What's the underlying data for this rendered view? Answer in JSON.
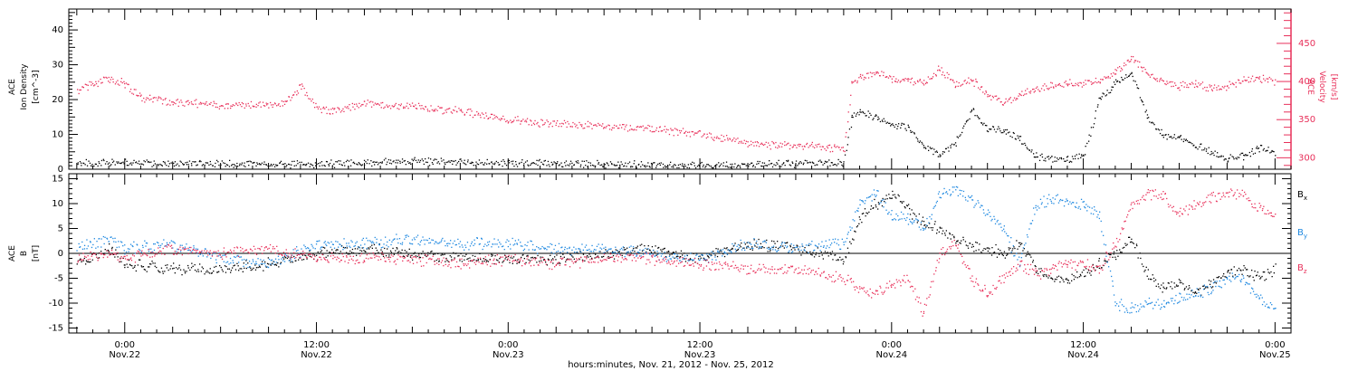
{
  "chart_data": [
    {
      "type": "scatter",
      "panel": "top",
      "ylabel_lines": [
        "ACE",
        "Ion Density",
        "[cm^-3]"
      ],
      "ylim": [
        0,
        46
      ],
      "yticks": [
        "0",
        "10",
        "20",
        "30",
        "40"
      ],
      "y2label_lines": [
        "ACE",
        "Velocity",
        "[km/s]"
      ],
      "y2lim": [
        285,
        495
      ],
      "y2ticks": [
        "300",
        "350",
        "400",
        "450"
      ],
      "series": [
        {
          "name": "Ion Density",
          "color": "#000000",
          "axis": "left",
          "x": [
            -3,
            0,
            3,
            6,
            9,
            12,
            15,
            18,
            21,
            24,
            27,
            30,
            33,
            36,
            39,
            42,
            45,
            45.5,
            46,
            47,
            48,
            49,
            50,
            51,
            52,
            53,
            54,
            55,
            56,
            57,
            58,
            59,
            60,
            61,
            62,
            63,
            64,
            65,
            66,
            67,
            68,
            69,
            70,
            71,
            72
          ],
          "y": [
            2,
            2,
            1.8,
            1.7,
            1.6,
            1.6,
            2,
            2.5,
            2.2,
            2,
            1.9,
            1.5,
            1.4,
            1.2,
            1.5,
            1.8,
            2,
            15,
            17,
            15,
            13,
            12,
            7,
            4,
            8,
            17,
            12,
            11,
            9,
            4,
            3,
            3,
            4,
            20,
            25,
            28,
            15,
            10,
            9,
            7,
            5,
            3,
            4,
            6,
            5
          ]
        },
        {
          "name": "Velocity",
          "color": "#e8305a",
          "axis": "right",
          "x": [
            -3,
            -2,
            -1,
            0,
            1,
            3,
            6,
            9,
            10,
            11,
            12,
            13,
            15,
            18,
            21,
            24,
            27,
            30,
            33,
            36,
            39,
            42,
            43,
            44,
            45,
            45.5,
            46,
            47,
            48,
            49,
            50,
            51,
            52,
            53,
            54,
            55,
            56,
            57,
            58,
            59,
            60,
            61,
            62,
            63,
            64,
            65,
            66,
            67,
            68,
            69,
            70,
            71,
            72
          ],
          "y": [
            390,
            397,
            405,
            398,
            380,
            373,
            370,
            370,
            372,
            395,
            365,
            362,
            372,
            368,
            362,
            350,
            345,
            342,
            338,
            332,
            320,
            315,
            317,
            313,
            312,
            398,
            405,
            412,
            405,
            402,
            398,
            418,
            395,
            402,
            385,
            372,
            383,
            390,
            395,
            398,
            398,
            402,
            412,
            432,
            410,
            400,
            395,
            398,
            392,
            395,
            402,
            404,
            400
          ]
        }
      ]
    },
    {
      "type": "scatter",
      "panel": "bottom",
      "ylabel_lines": [
        "ACE",
        "B",
        "[nT]"
      ],
      "ylim": [
        -16,
        16
      ],
      "yticks": [
        "-15",
        "-10",
        "-5",
        "0",
        "5",
        "10",
        "15"
      ],
      "legend_placement": "right",
      "series": [
        {
          "name": "B",
          "subscript": "x",
          "color": "#000000",
          "x": [
            -3,
            -1,
            0,
            3,
            6,
            9,
            12,
            15,
            18,
            21,
            24,
            27,
            30,
            33,
            36,
            39,
            42,
            45,
            46,
            47,
            48,
            49,
            50,
            51,
            52,
            53,
            54,
            55,
            56,
            57,
            58,
            59,
            60,
            61,
            62,
            63,
            64,
            65,
            66,
            67,
            68,
            69,
            70,
            71,
            72
          ],
          "y": [
            -2,
            1,
            -2,
            -3,
            -3,
            -2,
            0,
            1,
            0,
            -1,
            -1,
            -1,
            0,
            1,
            -1,
            2,
            1,
            -1,
            7,
            10,
            12,
            9,
            6,
            5,
            3,
            2,
            1,
            0,
            2,
            -3,
            -5,
            -5,
            -4,
            -2,
            0,
            3,
            -4,
            -7,
            -6,
            -8,
            -6,
            -4,
            -3,
            -5,
            -3
          ]
        },
        {
          "name": "B",
          "subscript": "y",
          "color": "#1e88e0",
          "x": [
            -3,
            -1,
            0,
            3,
            6,
            9,
            12,
            15,
            18,
            21,
            24,
            27,
            30,
            33,
            36,
            39,
            42,
            45,
            46,
            47,
            48,
            49,
            50,
            51,
            52,
            53,
            54,
            55,
            56,
            57,
            58,
            59,
            60,
            61,
            62,
            63,
            64,
            65,
            66,
            67,
            68,
            69,
            70,
            71,
            72
          ],
          "y": [
            1,
            3,
            1,
            2,
            -1,
            -2,
            2,
            2,
            3,
            2,
            2,
            1,
            1,
            0,
            -1,
            2,
            1,
            2,
            10,
            12,
            8,
            7,
            5,
            12,
            13,
            11,
            8,
            5,
            -2,
            10,
            11,
            10,
            10,
            8,
            -10,
            -11,
            -10,
            -10,
            -9,
            -8,
            -7,
            -5,
            -5,
            -9,
            -11
          ]
        },
        {
          "name": "B",
          "subscript": "z",
          "color": "#e8305a",
          "x": [
            -3,
            -1,
            0,
            3,
            6,
            9,
            12,
            15,
            18,
            21,
            24,
            27,
            30,
            33,
            36,
            39,
            42,
            45,
            46,
            47,
            48,
            49,
            50,
            51,
            52,
            53,
            54,
            55,
            56,
            57,
            58,
            59,
            60,
            61,
            62,
            63,
            64,
            65,
            66,
            67,
            68,
            69,
            70,
            71,
            72
          ],
          "y": [
            -1,
            0,
            -1,
            1,
            0,
            1,
            -1,
            -1,
            -1,
            -2,
            -1,
            -2,
            -1,
            -1,
            -2,
            -3,
            -3,
            -5,
            -7,
            -8,
            -6,
            -5,
            -12,
            0,
            2,
            -5,
            -8,
            -5,
            -2,
            -4,
            -3,
            -2,
            -2,
            -3,
            2,
            10,
            12,
            12,
            8,
            10,
            11,
            12,
            12,
            9,
            8
          ]
        }
      ]
    }
  ],
  "x_axis": {
    "range_hours": [
      -3.5,
      73
    ],
    "ticks": [
      {
        "hour": 0,
        "time": "0:00",
        "date": "Nov.22"
      },
      {
        "hour": 12,
        "time": "12:00",
        "date": "Nov.22"
      },
      {
        "hour": 24,
        "time": "0:00",
        "date": "Nov.23"
      },
      {
        "hour": 36,
        "time": "12:00",
        "date": "Nov.23"
      },
      {
        "hour": 48,
        "time": "0:00",
        "date": "Nov.24"
      },
      {
        "hour": 60,
        "time": "12:00",
        "date": "Nov.24"
      },
      {
        "hour": 72,
        "time": "0:00",
        "date": "Nov.25"
      }
    ],
    "label": "hours:minutes, Nov. 21, 2012 - Nov. 25, 2012"
  },
  "colors": {
    "black": "#000000",
    "pink": "#e8305a",
    "blue": "#1e88e0",
    "axis": "#000000"
  }
}
